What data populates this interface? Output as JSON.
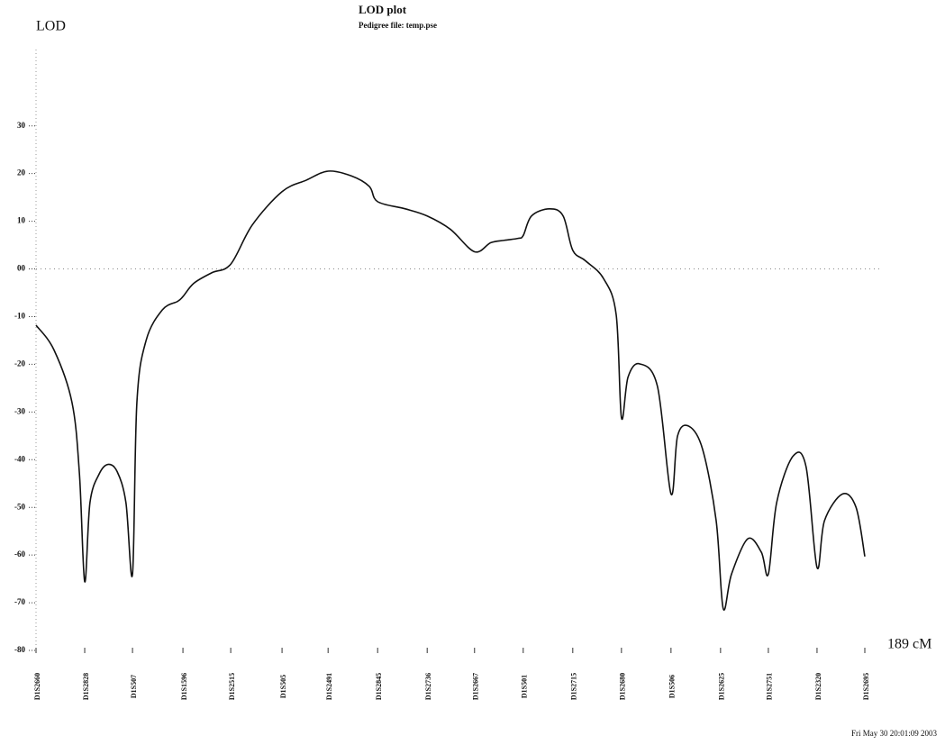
{
  "chart_data": {
    "type": "line",
    "y_label": "LOD",
    "title": "LOD plot",
    "subtitle": "Pedigree file: temp.pse",
    "x_end_label": "189 cM",
    "timestamp": "Fri May 30 20:01:09 2003",
    "xlim": [
      0,
      189
    ],
    "ylim": [
      -80,
      46
    ],
    "yticks": [
      30,
      20,
      10,
      {
        "value": 0,
        "label": "00"
      },
      -10,
      -20,
      -30,
      -40,
      -50,
      -60,
      -70,
      -80
    ],
    "zero_line": true,
    "color": "#111111",
    "markers": [
      {
        "name": "D1S2660",
        "x": 0
      },
      {
        "name": "D1S2828",
        "x": 11.1
      },
      {
        "name": "D1S507",
        "x": 22.0
      },
      {
        "name": "D1S1596",
        "x": 33.5
      },
      {
        "name": "D1S2515",
        "x": 44.4
      },
      {
        "name": "D1S505",
        "x": 56.1
      },
      {
        "name": "D1S2491",
        "x": 66.6
      },
      {
        "name": "D1S2845",
        "x": 77.9
      },
      {
        "name": "D1S2736",
        "x": 89.2
      },
      {
        "name": "D1S2667",
        "x": 100.0
      },
      {
        "name": "D1S501",
        "x": 111.1
      },
      {
        "name": "D1S2715",
        "x": 122.4
      },
      {
        "name": "D1S2680",
        "x": 133.5
      },
      {
        "name": "D1S506",
        "x": 144.8
      },
      {
        "name": "D1S2625",
        "x": 156.1
      },
      {
        "name": "D1S2751",
        "x": 167.0
      },
      {
        "name": "D1S2320",
        "x": 178.1
      },
      {
        "name": "D1S2695",
        "x": 189
      }
    ],
    "x": [
      0,
      4.1,
      8.2,
      9.9,
      11.1,
      12.3,
      14.4,
      16.4,
      18.5,
      20.5,
      22.0,
      23.0,
      25.1,
      28.8,
      32.3,
      33.5,
      36.0,
      40.1,
      44.4,
      49.3,
      56.1,
      61.6,
      66.6,
      71.9,
      76.0,
      77.9,
      84.2,
      89.2,
      94.5,
      100.0,
      103.7,
      106.8,
      109.9,
      111.1,
      113.0,
      117.1,
      120.2,
      122.4,
      125.3,
      129.4,
      132.3,
      133.5,
      135.0,
      137.6,
      141.7,
      144.8,
      146.3,
      148.9,
      152.0,
      155.1,
      156.7,
      158.6,
      162.3,
      165.4,
      167.0,
      168.9,
      172.6,
      175.6,
      178.1,
      179.8,
      183.9,
      187.0,
      189
    ],
    "values": [
      -11.8,
      -17,
      -28,
      -43,
      -65.6,
      -49,
      -43,
      -41,
      -42.5,
      -49,
      -64,
      -28,
      -15,
      -8.6,
      -6.8,
      -5.8,
      -3,
      -0.8,
      1,
      9.2,
      16.2,
      18.6,
      20.5,
      19.5,
      17.3,
      14.1,
      12.6,
      11.1,
      8.3,
      3.6,
      5.5,
      6,
      6.4,
      7,
      11.1,
      12.6,
      11.1,
      3.9,
      1.7,
      -2,
      -9.6,
      -31.2,
      -22.7,
      -19.9,
      -24.6,
      -47.2,
      -35,
      -33,
      -37.8,
      -52.8,
      -71.2,
      -64,
      -56.6,
      -59.4,
      -64,
      -49,
      -39.3,
      -41.5,
      -62.6,
      -52.8,
      -47.2,
      -50,
      -60.3
    ]
  }
}
